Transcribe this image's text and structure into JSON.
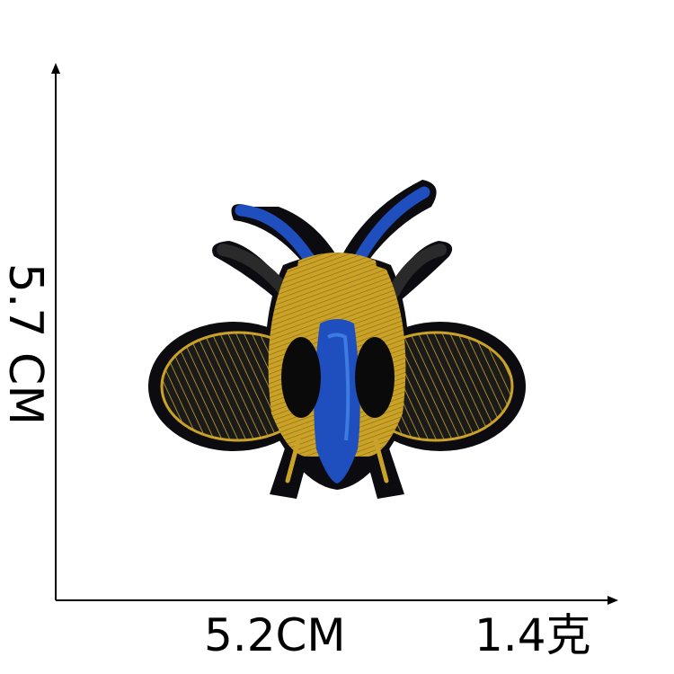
{
  "labels": {
    "height": "5.7 CM",
    "width": "5.2CM",
    "weight": "1.4克"
  },
  "colors": {
    "background": "#ffffff",
    "axis": "#000000",
    "patch_border": "#0b0b10",
    "gold_thread": "#c9a227",
    "gold_dark": "#8a6a12",
    "blue_thread": "#1f4fbf",
    "blue_light": "#3c7be0",
    "spot_black": "#0a0a0a"
  },
  "icons": {
    "patch": "bee-icon",
    "arrow_up": "arrow-up-icon",
    "arrow_right": "arrow-right-icon"
  }
}
